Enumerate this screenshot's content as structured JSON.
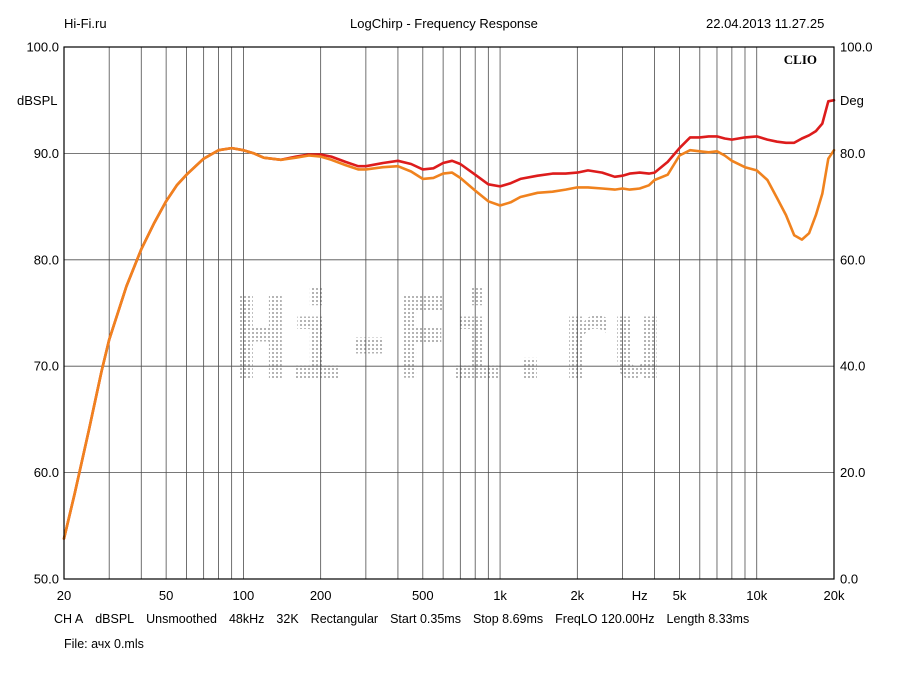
{
  "header": {
    "site": "Hi-Fi.ru",
    "title": "LogChirp - Frequency Response",
    "timestamp": "22.04.2013 11.27.25"
  },
  "brand": "CLIO",
  "watermark": "Hi-Fi.ru",
  "colors": {
    "background": "#ffffff",
    "grid": "#4d4d4d",
    "frame": "#000000",
    "series_red": "#dd1c1c",
    "series_orange": "#f0821e",
    "watermark": "#b4b4b4"
  },
  "footer": {
    "params": [
      "CH A",
      "dBSPL",
      "Unsmoothed",
      "48kHz",
      "32K",
      "Rectangular",
      "Start 0.35ms",
      "Stop 8.69ms",
      "FreqLO 120.00Hz",
      "Length 8.33ms"
    ],
    "file": "File: ачх 0.mls"
  },
  "chart_data": {
    "type": "line",
    "title": "LogChirp - Frequency Response",
    "xscale": "log",
    "xlim": [
      20,
      20000
    ],
    "ylim": [
      50,
      100
    ],
    "y2lim": [
      0,
      100
    ],
    "ylabel": "dBSPL",
    "y2label": "Deg",
    "xunit": "Hz",
    "grid": true,
    "x_ticks": [
      {
        "value": 20,
        "label": "20"
      },
      {
        "value": 50,
        "label": "50"
      },
      {
        "value": 100,
        "label": "100"
      },
      {
        "value": 200,
        "label": "200"
      },
      {
        "value": 500,
        "label": "500"
      },
      {
        "value": 1000,
        "label": "1k"
      },
      {
        "value": 2000,
        "label": "2k"
      },
      {
        "value": 5000,
        "label": "5k"
      },
      {
        "value": 10000,
        "label": "10k"
      },
      {
        "value": 20000,
        "label": "20k"
      }
    ],
    "y_ticks": [
      {
        "value": 50,
        "label": "50.0"
      },
      {
        "value": 60,
        "label": "60.0"
      },
      {
        "value": 70,
        "label": "70.0"
      },
      {
        "value": 80,
        "label": "80.0"
      },
      {
        "value": 90,
        "label": "90.0"
      },
      {
        "value": 100,
        "label": "100.0"
      }
    ],
    "y2_ticks": [
      {
        "value": 0,
        "label": "0.0"
      },
      {
        "value": 20,
        "label": "20.0"
      },
      {
        "value": 40,
        "label": "40.0"
      },
      {
        "value": 60,
        "label": "60.0"
      },
      {
        "value": 80,
        "label": "80.0"
      },
      {
        "value": 100,
        "label": "100.0"
      }
    ],
    "series": [
      {
        "color": "#dd1c1c",
        "x": [
          20,
          22,
          25,
          28,
          30,
          35,
          40,
          45,
          50,
          55,
          60,
          70,
          80,
          90,
          100,
          110,
          120,
          140,
          160,
          180,
          200,
          220,
          250,
          280,
          300,
          350,
          400,
          450,
          500,
          550,
          600,
          650,
          700,
          800,
          900,
          1000,
          1100,
          1200,
          1400,
          1600,
          1800,
          2000,
          2200,
          2500,
          2800,
          3000,
          3200,
          3500,
          3800,
          4000,
          4500,
          5000,
          5500,
          6000,
          6500,
          7000,
          7500,
          8000,
          9000,
          10000,
          11000,
          12000,
          13000,
          14000,
          15000,
          16000,
          17000,
          18000,
          19000,
          20000
        ],
        "y": [
          53.8,
          58,
          64,
          69.5,
          72.5,
          77.5,
          81,
          83.5,
          85.5,
          87,
          88,
          89.5,
          90.3,
          90.5,
          90.3,
          90,
          89.6,
          89.4,
          89.7,
          89.9,
          89.9,
          89.7,
          89.2,
          88.8,
          88.8,
          89.1,
          89.3,
          89,
          88.5,
          88.6,
          89.1,
          89.3,
          89,
          88,
          87.1,
          86.9,
          87.2,
          87.6,
          87.9,
          88.1,
          88.1,
          88.2,
          88.4,
          88.2,
          87.8,
          87.9,
          88.1,
          88.2,
          88.1,
          88.2,
          89.2,
          90.5,
          91.5,
          91.5,
          91.6,
          91.6,
          91.4,
          91.3,
          91.5,
          91.6,
          91.3,
          91.1,
          91,
          91,
          91.4,
          91.7,
          92.1,
          92.8,
          94.9,
          95
        ],
        "y_axis": "left"
      },
      {
        "color": "#f0821e",
        "x": [
          20,
          22,
          25,
          28,
          30,
          35,
          40,
          45,
          50,
          55,
          60,
          70,
          80,
          90,
          100,
          110,
          120,
          140,
          160,
          180,
          200,
          220,
          250,
          280,
          300,
          350,
          400,
          450,
          500,
          550,
          600,
          650,
          700,
          800,
          900,
          1000,
          1100,
          1200,
          1400,
          1600,
          1800,
          2000,
          2200,
          2500,
          2800,
          3000,
          3200,
          3500,
          3800,
          4000,
          4500,
          5000,
          5500,
          6000,
          6500,
          7000,
          7500,
          8000,
          9000,
          10000,
          11000,
          12000,
          13000,
          14000,
          15000,
          16000,
          17000,
          18000,
          19000,
          20000
        ],
        "y": [
          53.8,
          58,
          64,
          69.5,
          72.5,
          77.5,
          81,
          83.5,
          85.5,
          87,
          88,
          89.5,
          90.3,
          90.5,
          90.3,
          90,
          89.6,
          89.4,
          89.6,
          89.8,
          89.7,
          89.4,
          88.9,
          88.5,
          88.5,
          88.7,
          88.8,
          88.3,
          87.6,
          87.7,
          88.1,
          88.2,
          87.7,
          86.5,
          85.5,
          85.1,
          85.4,
          85.9,
          86.3,
          86.4,
          86.6,
          86.8,
          86.8,
          86.7,
          86.6,
          86.7,
          86.6,
          86.7,
          87,
          87.5,
          88,
          89.8,
          90.3,
          90.2,
          90.1,
          90.2,
          89.8,
          89.3,
          88.7,
          88.4,
          87.5,
          85.8,
          84.2,
          82.3,
          81.9,
          82.5,
          84.2,
          86.2,
          89.5,
          90.3
        ],
        "y_axis": "left"
      }
    ]
  }
}
